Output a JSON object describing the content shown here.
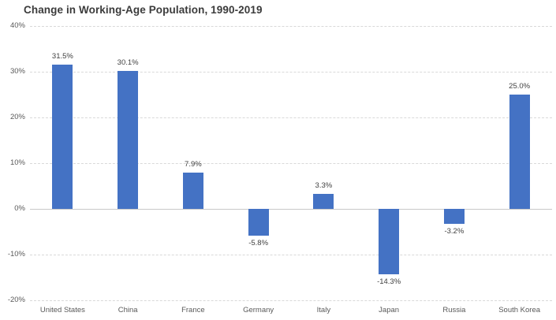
{
  "chart_data": {
    "type": "bar",
    "title": "Change in Working-Age Population, 1990-2019",
    "categories": [
      "United States",
      "China",
      "France",
      "Germany",
      "Italy",
      "Japan",
      "Russia",
      "South Korea"
    ],
    "values": [
      31.5,
      30.1,
      7.9,
      -5.8,
      3.3,
      -14.3,
      -3.2,
      25.0
    ],
    "data_labels": [
      "31.5%",
      "30.1%",
      "7.9%",
      "-5.8%",
      "3.3%",
      "-14.3%",
      "-3.2%",
      "25.0%"
    ],
    "xlabel": "",
    "ylabel": "",
    "ylim": [
      -20,
      40
    ],
    "y_tick_values": [
      40,
      30,
      20,
      10,
      0,
      -10,
      -20
    ],
    "y_tick_labels": [
      "40%",
      "30%",
      "20%",
      "10%",
      "0%",
      "-10%",
      "-20%"
    ],
    "grid": "horizontal-dashed",
    "legend_position": "none",
    "bar_color": "#4472C4",
    "gridline_color": "#d9d9d9",
    "zero_line_color": "#c8c8c8",
    "title_color": "#3b3b3b",
    "tick_label_color": "#595959",
    "data_label_color": "#404040"
  }
}
